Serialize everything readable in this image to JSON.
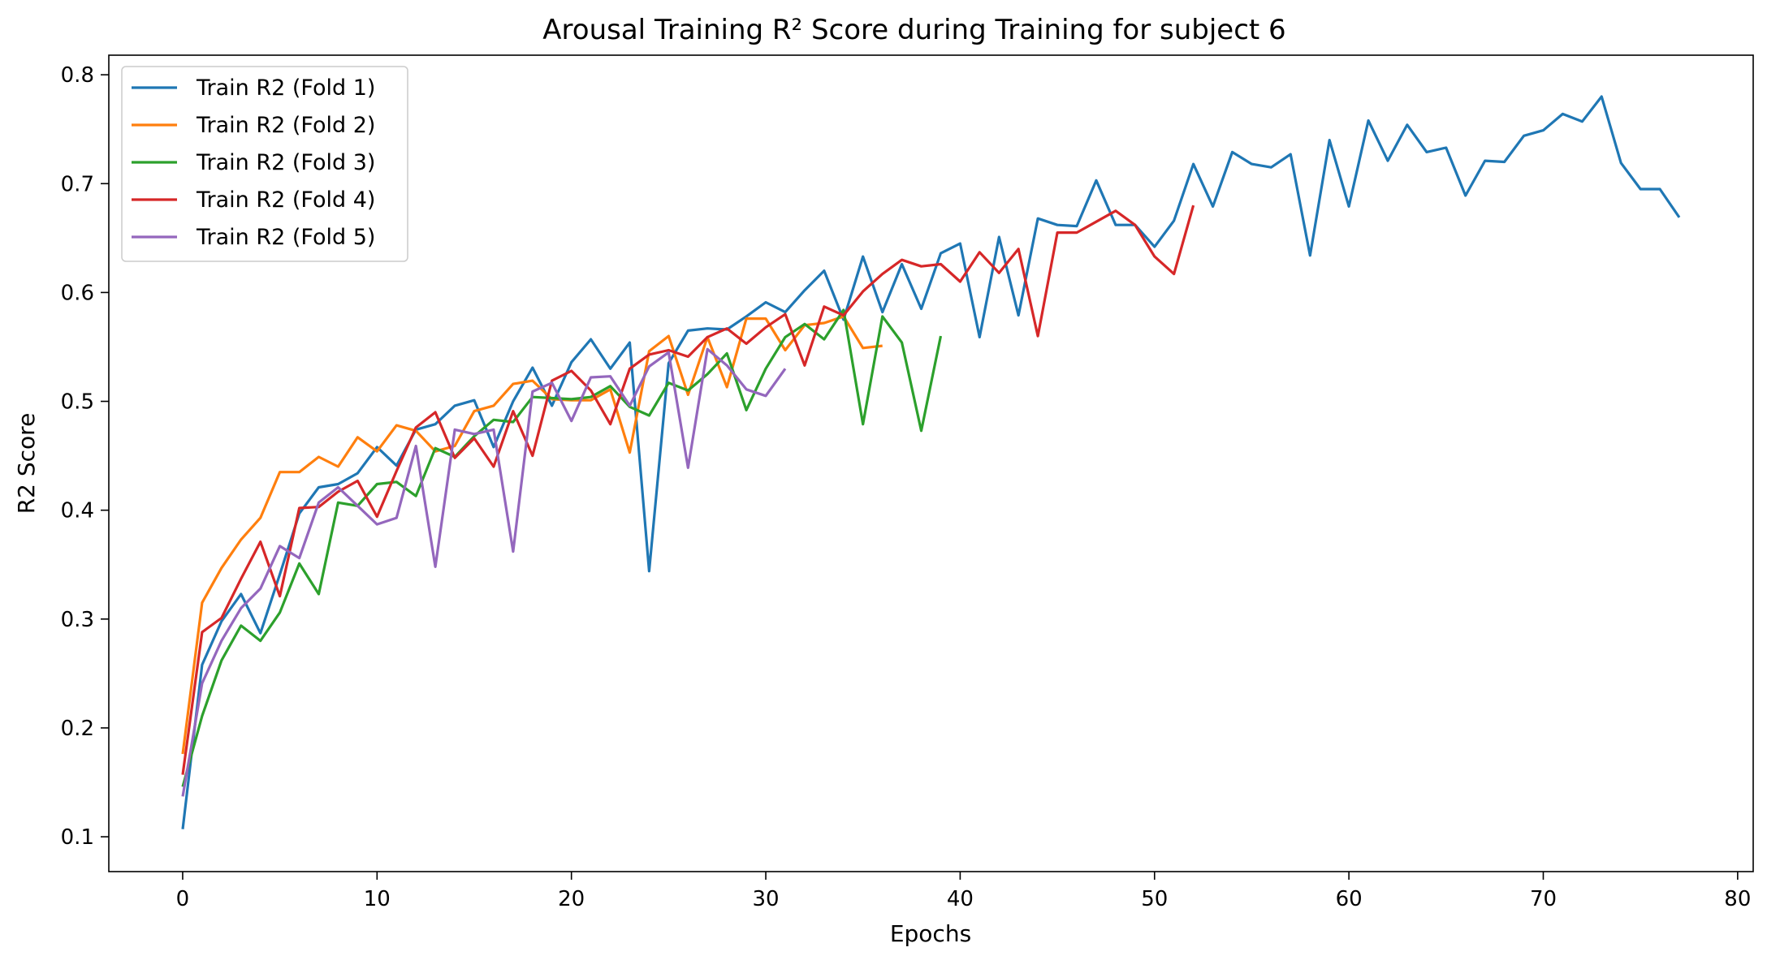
{
  "chart_data": {
    "type": "line",
    "title": "Arousal Training R² Score during Training for subject 6",
    "xlabel": "Epochs",
    "ylabel": "R2 Score",
    "xlim": [
      -3.8,
      80.8
    ],
    "ylim": [
      0.068,
      0.818
    ],
    "xticks": [
      0,
      10,
      20,
      30,
      40,
      50,
      60,
      70,
      80
    ],
    "yticks": [
      0.1,
      0.2,
      0.3,
      0.4,
      0.5,
      0.6,
      0.7,
      0.8
    ],
    "legend_position": "top-left",
    "grid": false,
    "series": [
      {
        "name": "Train R2 (Fold 1)",
        "color": "#1f77b4",
        "values": [
          0.107,
          0.258,
          0.298,
          0.323,
          0.287,
          0.341,
          0.397,
          0.421,
          0.424,
          0.434,
          0.458,
          0.441,
          0.474,
          0.479,
          0.496,
          0.501,
          0.458,
          0.5,
          0.531,
          0.496,
          0.536,
          0.557,
          0.53,
          0.554,
          0.344,
          0.535,
          0.565,
          0.567,
          0.566,
          0.578,
          0.591,
          0.582,
          0.602,
          0.62,
          0.575,
          0.633,
          0.582,
          0.626,
          0.585,
          0.636,
          0.645,
          0.559,
          0.651,
          0.579,
          0.668,
          0.662,
          0.661,
          0.703,
          0.662,
          0.662,
          0.642,
          0.666,
          0.718,
          0.679,
          0.729,
          0.718,
          0.715,
          0.727,
          0.634,
          0.74,
          0.679,
          0.758,
          0.721,
          0.754,
          0.729,
          0.733,
          0.689,
          0.721,
          0.72,
          0.744,
          0.749,
          0.764,
          0.757,
          0.78,
          0.719,
          0.695,
          0.695,
          0.669
        ]
      },
      {
        "name": "Train R2 (Fold 2)",
        "color": "#ff7f0e",
        "values": [
          0.176,
          0.315,
          0.347,
          0.373,
          0.393,
          0.435,
          0.435,
          0.449,
          0.44,
          0.467,
          0.454,
          0.478,
          0.473,
          0.454,
          0.459,
          0.491,
          0.496,
          0.516,
          0.519,
          0.502,
          0.501,
          0.501,
          0.511,
          0.453,
          0.546,
          0.56,
          0.506,
          0.559,
          0.513,
          0.576,
          0.576,
          0.547,
          0.57,
          0.572,
          0.578,
          0.549,
          0.551
        ]
      },
      {
        "name": "Train R2 (Fold 3)",
        "color": "#2ca02c",
        "values": [
          0.146,
          0.211,
          0.262,
          0.294,
          0.28,
          0.306,
          0.351,
          0.323,
          0.407,
          0.404,
          0.424,
          0.426,
          0.413,
          0.457,
          0.449,
          0.468,
          0.483,
          0.481,
          0.504,
          0.503,
          0.502,
          0.504,
          0.514,
          0.495,
          0.487,
          0.517,
          0.51,
          0.525,
          0.544,
          0.492,
          0.53,
          0.559,
          0.571,
          0.557,
          0.584,
          0.479,
          0.578,
          0.554,
          0.473,
          0.56
        ]
      },
      {
        "name": "Train R2 (Fold 4)",
        "color": "#d62728",
        "values": [
          0.157,
          0.288,
          0.301,
          0.337,
          0.371,
          0.321,
          0.402,
          0.403,
          0.417,
          0.427,
          0.394,
          0.436,
          0.476,
          0.49,
          0.448,
          0.466,
          0.44,
          0.491,
          0.45,
          0.519,
          0.528,
          0.51,
          0.479,
          0.53,
          0.543,
          0.547,
          0.541,
          0.559,
          0.567,
          0.553,
          0.568,
          0.58,
          0.533,
          0.587,
          0.579,
          0.601,
          0.617,
          0.63,
          0.624,
          0.626,
          0.61,
          0.637,
          0.618,
          0.64,
          0.56,
          0.655,
          0.655,
          0.665,
          0.675,
          0.662,
          0.633,
          0.617,
          0.68
        ]
      },
      {
        "name": "Train R2 (Fold 5)",
        "color": "#9467bd",
        "values": [
          0.137,
          0.241,
          0.28,
          0.31,
          0.328,
          0.367,
          0.356,
          0.407,
          0.421,
          0.404,
          0.387,
          0.393,
          0.459,
          0.348,
          0.474,
          0.47,
          0.474,
          0.362,
          0.509,
          0.517,
          0.482,
          0.522,
          0.523,
          0.496,
          0.532,
          0.545,
          0.439,
          0.548,
          0.533,
          0.511,
          0.505,
          0.53
        ]
      }
    ]
  }
}
